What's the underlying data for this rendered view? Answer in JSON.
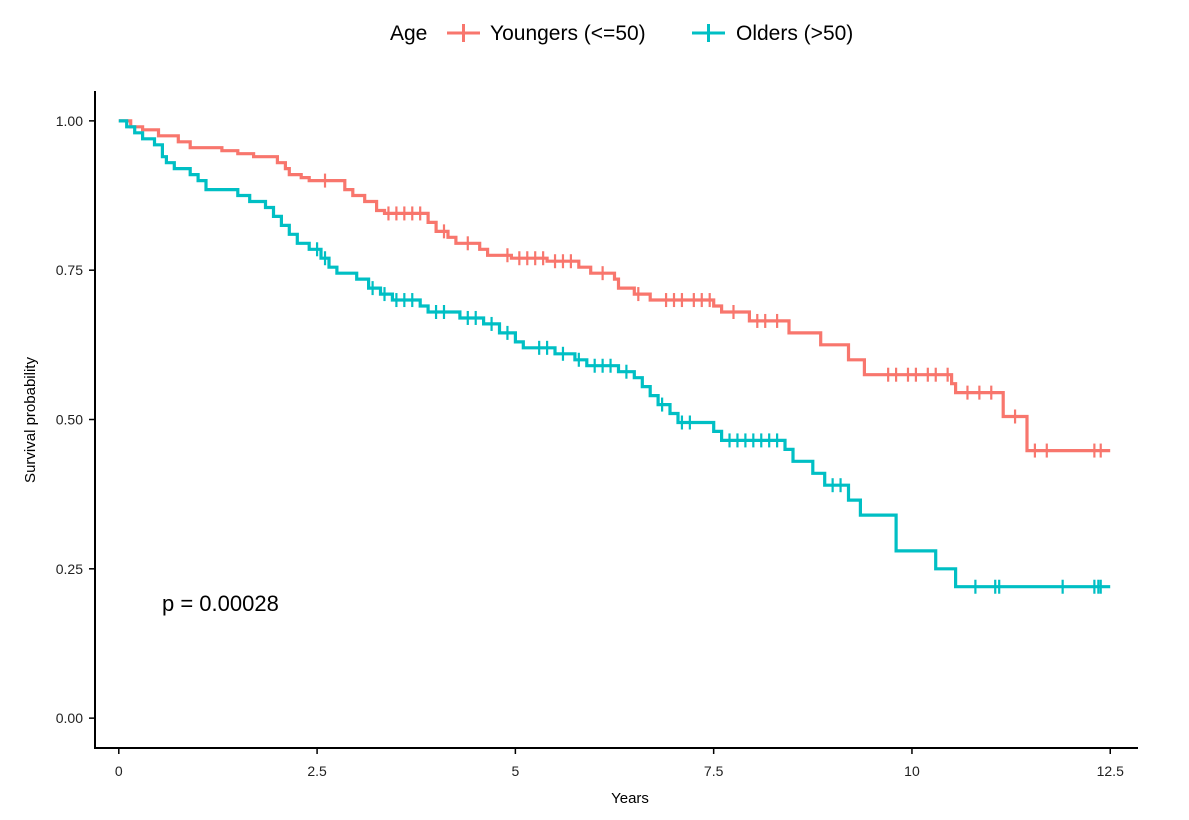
{
  "chart_data": {
    "type": "line",
    "subtype": "kaplan-meier step curves",
    "xlabel": "Years",
    "ylabel": "Survival probability",
    "xlim": [
      -0.3,
      12.85
    ],
    "ylim": [
      -0.05,
      1.05
    ],
    "x_ticks": [
      0,
      2.5,
      5,
      7.5,
      10,
      12.5
    ],
    "x_tick_labels": [
      "0",
      "2.5",
      "5",
      "7.5",
      "10",
      "12.5"
    ],
    "y_ticks": [
      0,
      0.25,
      0.5,
      0.75,
      1
    ],
    "y_tick_labels": [
      "0.00",
      "0.25",
      "0.50",
      "0.75",
      "1.00"
    ],
    "grid": false,
    "legend": {
      "title": "Age",
      "position": "top",
      "entries": [
        "Youngers (<=50)",
        "Olders (>50)"
      ]
    },
    "annotation": "p = 0.00028",
    "series": [
      {
        "name": "Youngers (<=50)",
        "color": "#F8766D",
        "steps": [
          [
            0,
            1
          ],
          [
            0.15,
            1
          ],
          [
            0.15,
            0.99
          ],
          [
            0.3,
            0.99
          ],
          [
            0.3,
            0.985
          ],
          [
            0.5,
            0.985
          ],
          [
            0.5,
            0.975
          ],
          [
            0.75,
            0.975
          ],
          [
            0.75,
            0.965
          ],
          [
            0.9,
            0.965
          ],
          [
            0.9,
            0.955
          ],
          [
            1.3,
            0.955
          ],
          [
            1.3,
            0.95
          ],
          [
            1.5,
            0.95
          ],
          [
            1.5,
            0.945
          ],
          [
            1.7,
            0.945
          ],
          [
            1.7,
            0.94
          ],
          [
            2.0,
            0.94
          ],
          [
            2.0,
            0.93
          ],
          [
            2.1,
            0.93
          ],
          [
            2.1,
            0.92
          ],
          [
            2.15,
            0.92
          ],
          [
            2.15,
            0.91
          ],
          [
            2.3,
            0.91
          ],
          [
            2.3,
            0.905
          ],
          [
            2.4,
            0.905
          ],
          [
            2.4,
            0.9
          ],
          [
            2.85,
            0.9
          ],
          [
            2.85,
            0.885
          ],
          [
            2.95,
            0.885
          ],
          [
            2.95,
            0.875
          ],
          [
            3.1,
            0.875
          ],
          [
            3.1,
            0.865
          ],
          [
            3.25,
            0.865
          ],
          [
            3.25,
            0.85
          ],
          [
            3.35,
            0.85
          ],
          [
            3.35,
            0.845
          ],
          [
            3.9,
            0.845
          ],
          [
            3.9,
            0.83
          ],
          [
            4.0,
            0.83
          ],
          [
            4.0,
            0.815
          ],
          [
            4.15,
            0.815
          ],
          [
            4.15,
            0.805
          ],
          [
            4.25,
            0.805
          ],
          [
            4.25,
            0.795
          ],
          [
            4.55,
            0.795
          ],
          [
            4.55,
            0.785
          ],
          [
            4.65,
            0.785
          ],
          [
            4.65,
            0.775
          ],
          [
            4.95,
            0.775
          ],
          [
            4.95,
            0.77
          ],
          [
            5.4,
            0.77
          ],
          [
            5.4,
            0.765
          ],
          [
            5.8,
            0.765
          ],
          [
            5.8,
            0.755
          ],
          [
            5.95,
            0.755
          ],
          [
            5.95,
            0.745
          ],
          [
            6.25,
            0.745
          ],
          [
            6.25,
            0.735
          ],
          [
            6.3,
            0.735
          ],
          [
            6.3,
            0.72
          ],
          [
            6.5,
            0.72
          ],
          [
            6.5,
            0.71
          ],
          [
            6.7,
            0.71
          ],
          [
            6.7,
            0.7
          ],
          [
            7.5,
            0.7
          ],
          [
            7.5,
            0.69
          ],
          [
            7.6,
            0.69
          ],
          [
            7.6,
            0.68
          ],
          [
            7.95,
            0.68
          ],
          [
            7.95,
            0.665
          ],
          [
            8.45,
            0.665
          ],
          [
            8.45,
            0.645
          ],
          [
            8.85,
            0.645
          ],
          [
            8.85,
            0.625
          ],
          [
            9.2,
            0.625
          ],
          [
            9.2,
            0.6
          ],
          [
            9.4,
            0.6
          ],
          [
            9.4,
            0.575
          ],
          [
            10.5,
            0.575
          ],
          [
            10.5,
            0.56
          ],
          [
            10.55,
            0.56
          ],
          [
            10.55,
            0.545
          ],
          [
            11.15,
            0.545
          ],
          [
            11.15,
            0.505
          ],
          [
            11.45,
            0.505
          ],
          [
            11.45,
            0.448
          ],
          [
            12.5,
            0.448
          ]
        ],
        "censors": [
          [
            2.6,
            0.9
          ],
          [
            3.4,
            0.845
          ],
          [
            3.5,
            0.845
          ],
          [
            3.6,
            0.845
          ],
          [
            3.7,
            0.845
          ],
          [
            3.8,
            0.845
          ],
          [
            4.1,
            0.815
          ],
          [
            4.4,
            0.795
          ],
          [
            4.9,
            0.775
          ],
          [
            5.05,
            0.77
          ],
          [
            5.15,
            0.77
          ],
          [
            5.25,
            0.77
          ],
          [
            5.35,
            0.77
          ],
          [
            5.5,
            0.765
          ],
          [
            5.6,
            0.765
          ],
          [
            5.7,
            0.765
          ],
          [
            6.1,
            0.745
          ],
          [
            6.55,
            0.71
          ],
          [
            6.9,
            0.7
          ],
          [
            7.0,
            0.7
          ],
          [
            7.1,
            0.7
          ],
          [
            7.25,
            0.7
          ],
          [
            7.35,
            0.7
          ],
          [
            7.45,
            0.7
          ],
          [
            7.75,
            0.68
          ],
          [
            8.05,
            0.665
          ],
          [
            8.15,
            0.665
          ],
          [
            8.3,
            0.665
          ],
          [
            9.7,
            0.575
          ],
          [
            9.8,
            0.575
          ],
          [
            9.95,
            0.575
          ],
          [
            10.05,
            0.575
          ],
          [
            10.2,
            0.575
          ],
          [
            10.3,
            0.575
          ],
          [
            10.45,
            0.575
          ],
          [
            10.7,
            0.545
          ],
          [
            10.85,
            0.545
          ],
          [
            11.0,
            0.545
          ],
          [
            11.3,
            0.505
          ],
          [
            11.55,
            0.448
          ],
          [
            11.7,
            0.448
          ],
          [
            12.3,
            0.448
          ],
          [
            12.38,
            0.448
          ]
        ]
      },
      {
        "name": "Olders (>50)",
        "color": "#00BFC4",
        "steps": [
          [
            0,
            1
          ],
          [
            0.1,
            1
          ],
          [
            0.1,
            0.99
          ],
          [
            0.2,
            0.99
          ],
          [
            0.2,
            0.98
          ],
          [
            0.3,
            0.98
          ],
          [
            0.3,
            0.97
          ],
          [
            0.45,
            0.97
          ],
          [
            0.45,
            0.96
          ],
          [
            0.55,
            0.96
          ],
          [
            0.55,
            0.94
          ],
          [
            0.6,
            0.94
          ],
          [
            0.6,
            0.93
          ],
          [
            0.7,
            0.93
          ],
          [
            0.7,
            0.92
          ],
          [
            0.9,
            0.92
          ],
          [
            0.9,
            0.91
          ],
          [
            1.0,
            0.91
          ],
          [
            1.0,
            0.9
          ],
          [
            1.1,
            0.9
          ],
          [
            1.1,
            0.885
          ],
          [
            1.5,
            0.885
          ],
          [
            1.5,
            0.875
          ],
          [
            1.65,
            0.875
          ],
          [
            1.65,
            0.865
          ],
          [
            1.85,
            0.865
          ],
          [
            1.85,
            0.855
          ],
          [
            1.95,
            0.855
          ],
          [
            1.95,
            0.84
          ],
          [
            2.05,
            0.84
          ],
          [
            2.05,
            0.825
          ],
          [
            2.15,
            0.825
          ],
          [
            2.15,
            0.81
          ],
          [
            2.25,
            0.81
          ],
          [
            2.25,
            0.795
          ],
          [
            2.4,
            0.795
          ],
          [
            2.4,
            0.785
          ],
          [
            2.55,
            0.785
          ],
          [
            2.55,
            0.77
          ],
          [
            2.65,
            0.77
          ],
          [
            2.65,
            0.755
          ],
          [
            2.75,
            0.755
          ],
          [
            2.75,
            0.745
          ],
          [
            3.0,
            0.745
          ],
          [
            3.0,
            0.735
          ],
          [
            3.15,
            0.735
          ],
          [
            3.15,
            0.72
          ],
          [
            3.3,
            0.72
          ],
          [
            3.3,
            0.71
          ],
          [
            3.45,
            0.71
          ],
          [
            3.45,
            0.7
          ],
          [
            3.8,
            0.7
          ],
          [
            3.8,
            0.69
          ],
          [
            3.9,
            0.69
          ],
          [
            3.9,
            0.68
          ],
          [
            4.3,
            0.68
          ],
          [
            4.3,
            0.67
          ],
          [
            4.6,
            0.67
          ],
          [
            4.6,
            0.66
          ],
          [
            4.8,
            0.66
          ],
          [
            4.8,
            0.645
          ],
          [
            5.0,
            0.645
          ],
          [
            5.0,
            0.63
          ],
          [
            5.1,
            0.63
          ],
          [
            5.1,
            0.62
          ],
          [
            5.5,
            0.62
          ],
          [
            5.5,
            0.61
          ],
          [
            5.75,
            0.61
          ],
          [
            5.75,
            0.6
          ],
          [
            5.9,
            0.6
          ],
          [
            5.9,
            0.59
          ],
          [
            6.3,
            0.59
          ],
          [
            6.3,
            0.58
          ],
          [
            6.5,
            0.58
          ],
          [
            6.5,
            0.57
          ],
          [
            6.6,
            0.57
          ],
          [
            6.6,
            0.555
          ],
          [
            6.7,
            0.555
          ],
          [
            6.7,
            0.54
          ],
          [
            6.8,
            0.54
          ],
          [
            6.8,
            0.525
          ],
          [
            6.95,
            0.525
          ],
          [
            6.95,
            0.51
          ],
          [
            7.05,
            0.51
          ],
          [
            7.05,
            0.495
          ],
          [
            7.5,
            0.495
          ],
          [
            7.5,
            0.48
          ],
          [
            7.6,
            0.48
          ],
          [
            7.6,
            0.465
          ],
          [
            8.4,
            0.465
          ],
          [
            8.4,
            0.45
          ],
          [
            8.5,
            0.45
          ],
          [
            8.5,
            0.43
          ],
          [
            8.75,
            0.43
          ],
          [
            8.75,
            0.41
          ],
          [
            8.9,
            0.41
          ],
          [
            8.9,
            0.39
          ],
          [
            9.2,
            0.39
          ],
          [
            9.2,
            0.365
          ],
          [
            9.35,
            0.365
          ],
          [
            9.35,
            0.34
          ],
          [
            9.8,
            0.34
          ],
          [
            9.8,
            0.28
          ],
          [
            10.3,
            0.28
          ],
          [
            10.3,
            0.25
          ],
          [
            10.55,
            0.25
          ],
          [
            10.55,
            0.22
          ],
          [
            12.5,
            0.22
          ]
        ],
        "censors": [
          [
            2.5,
            0.785
          ],
          [
            2.6,
            0.77
          ],
          [
            3.2,
            0.72
          ],
          [
            3.35,
            0.71
          ],
          [
            3.5,
            0.7
          ],
          [
            3.6,
            0.7
          ],
          [
            3.7,
            0.7
          ],
          [
            4.0,
            0.68
          ],
          [
            4.1,
            0.68
          ],
          [
            4.4,
            0.67
          ],
          [
            4.5,
            0.67
          ],
          [
            4.7,
            0.66
          ],
          [
            4.9,
            0.645
          ],
          [
            5.3,
            0.62
          ],
          [
            5.4,
            0.62
          ],
          [
            5.6,
            0.61
          ],
          [
            5.8,
            0.6
          ],
          [
            6.0,
            0.59
          ],
          [
            6.1,
            0.59
          ],
          [
            6.2,
            0.59
          ],
          [
            6.4,
            0.58
          ],
          [
            6.85,
            0.525
          ],
          [
            7.1,
            0.495
          ],
          [
            7.2,
            0.495
          ],
          [
            7.7,
            0.465
          ],
          [
            7.8,
            0.465
          ],
          [
            7.9,
            0.465
          ],
          [
            8.0,
            0.465
          ],
          [
            8.1,
            0.465
          ],
          [
            8.2,
            0.465
          ],
          [
            8.3,
            0.465
          ],
          [
            9.0,
            0.39
          ],
          [
            9.1,
            0.39
          ],
          [
            10.8,
            0.22
          ],
          [
            11.05,
            0.22
          ],
          [
            11.1,
            0.22
          ],
          [
            11.9,
            0.22
          ],
          [
            12.3,
            0.22
          ],
          [
            12.35,
            0.22
          ],
          [
            12.38,
            0.22
          ]
        ]
      }
    ]
  }
}
